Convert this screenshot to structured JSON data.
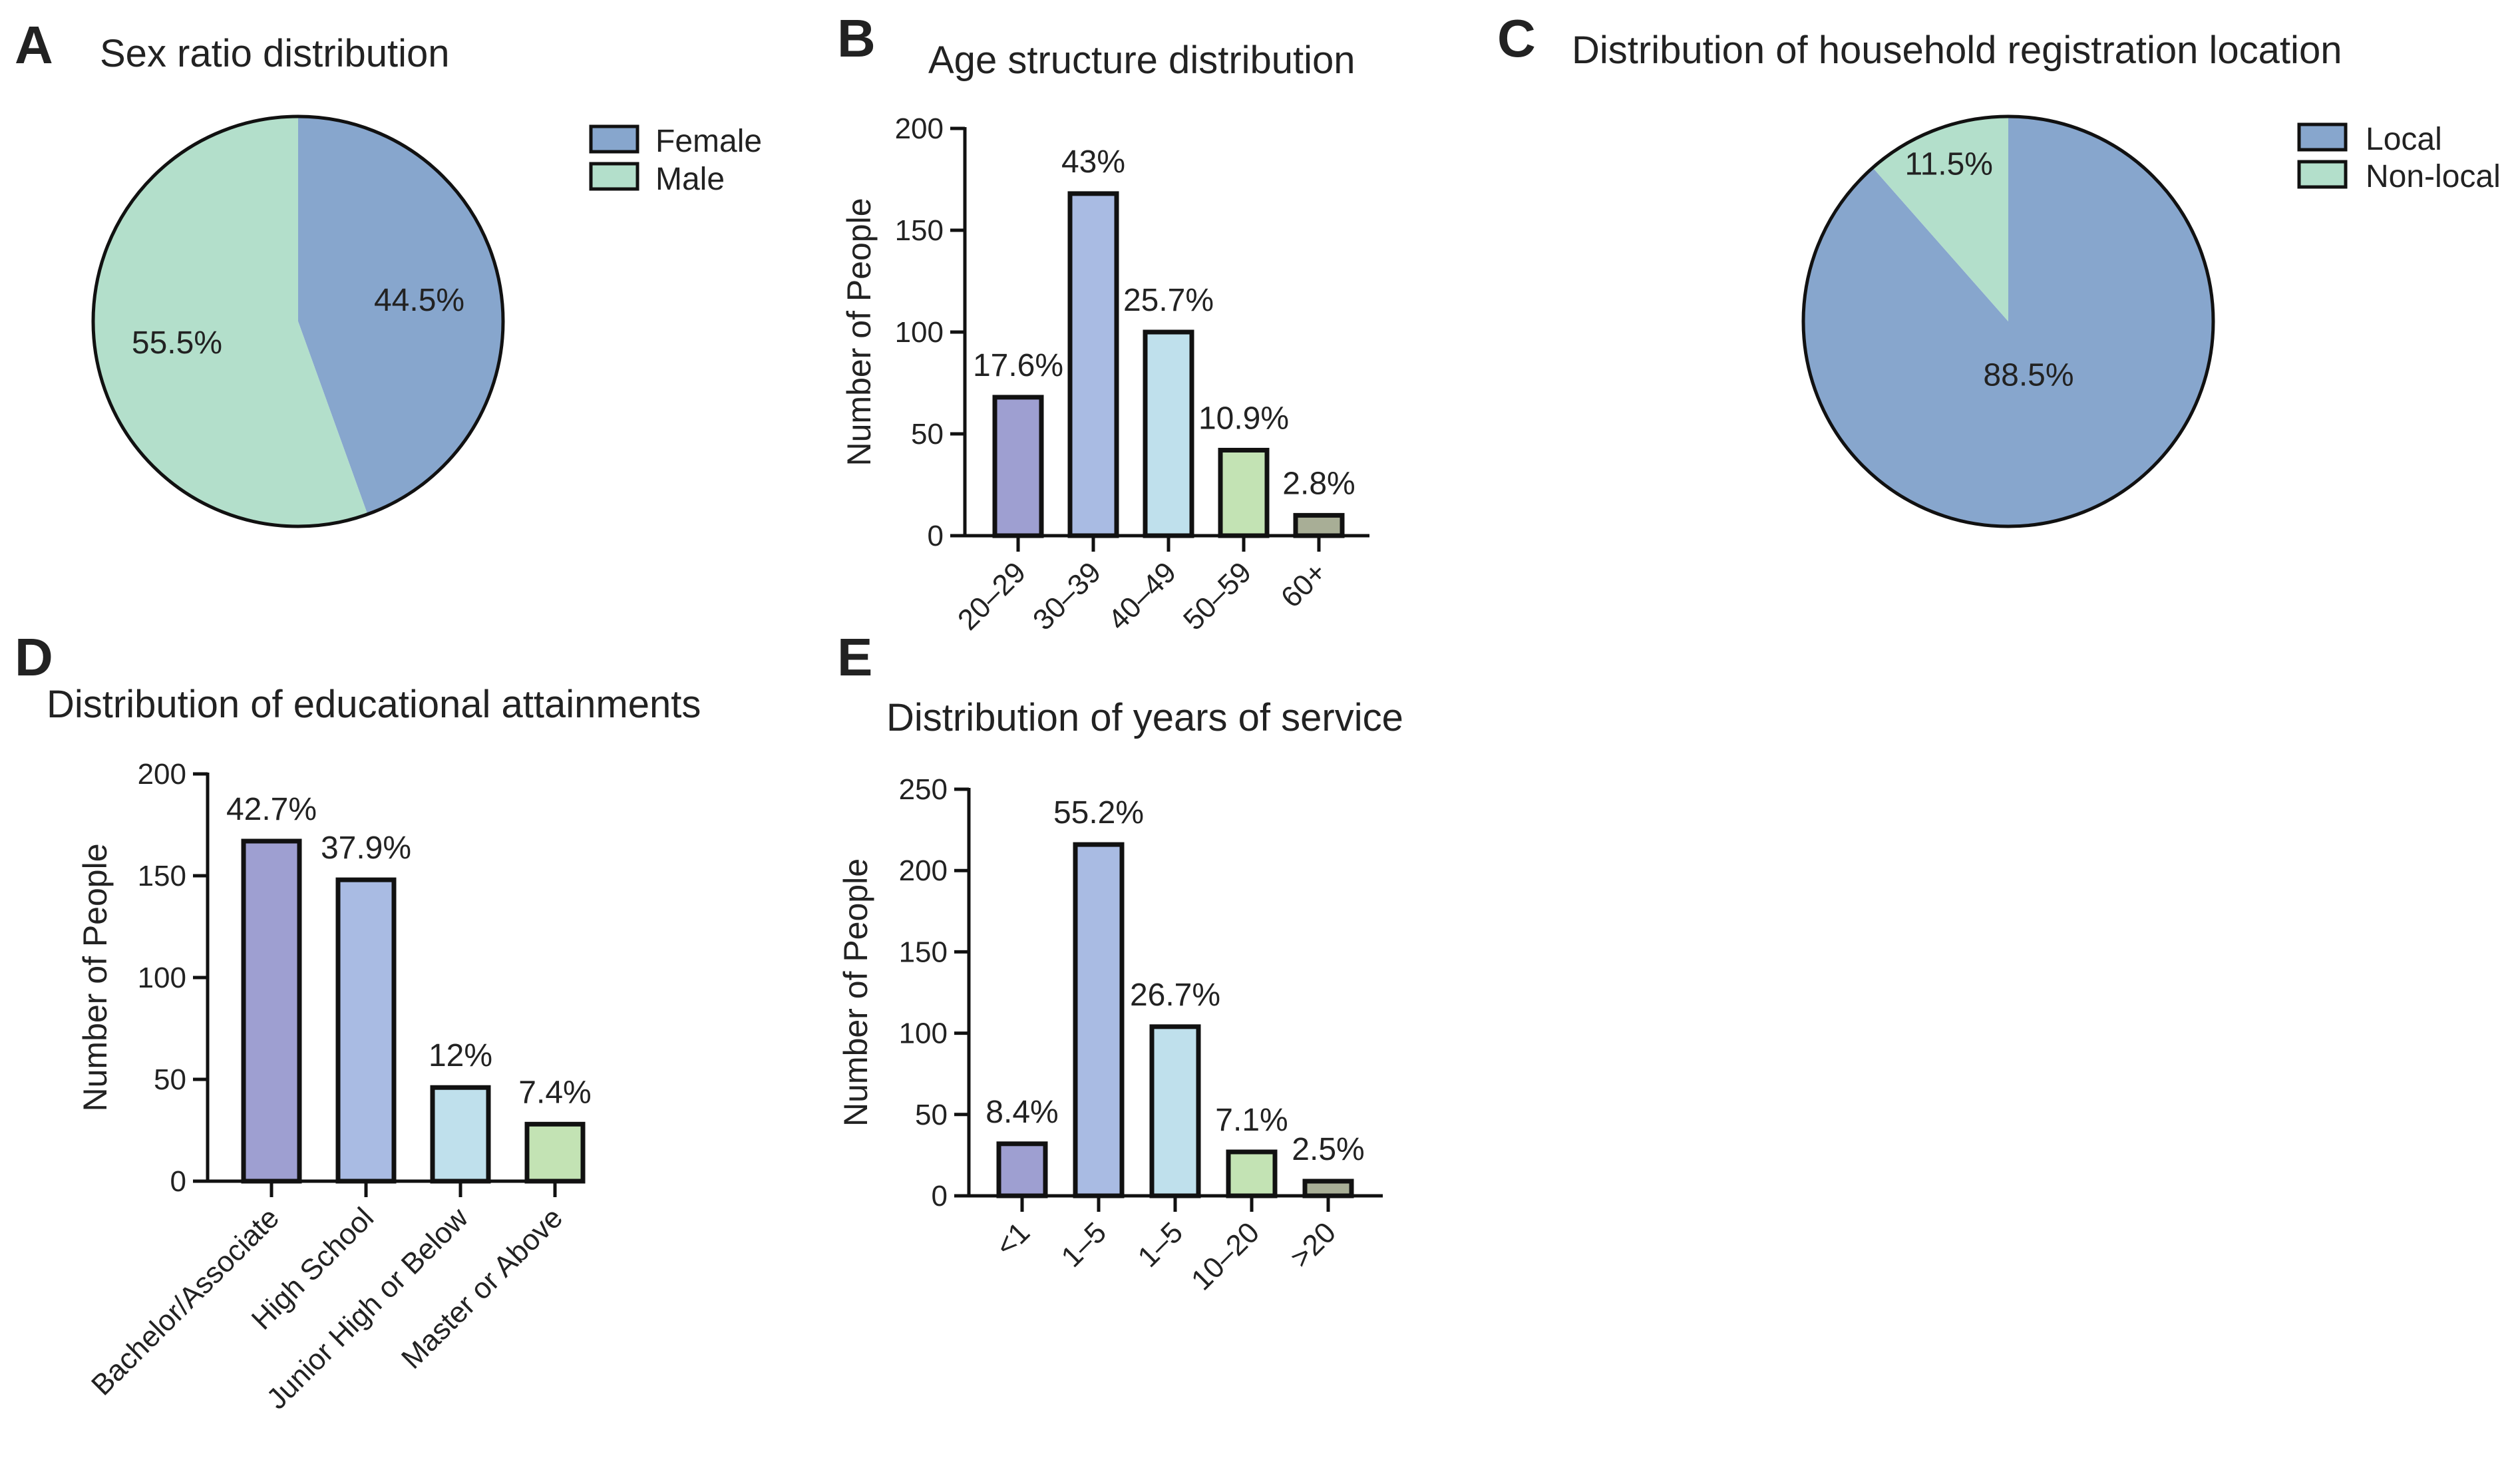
{
  "panel_letters": [
    "A",
    "B",
    "C",
    "D",
    "E"
  ],
  "colors": {
    "purple": "#9e9fd1",
    "periwinkle": "#a9bbe3",
    "lightblue": "#bfe0ec",
    "lightgreen": "#c3e3b4",
    "olive": "#a8ae96",
    "pieBlue": "#87a6cd",
    "pieGreen": "#b3dfcb",
    "stroke": "#111111"
  },
  "chart_data": [
    {
      "id": "A",
      "type": "pie",
      "title": "Sex ratio distribution",
      "labels": [
        "Female",
        "Male"
      ],
      "values": [
        44.5,
        55.5
      ],
      "value_labels": [
        "44.5%",
        "55.5%"
      ],
      "legend_position": "right"
    },
    {
      "id": "B",
      "type": "bar",
      "title": "Age structure distribution",
      "ylabel": "Number of People",
      "xlabel": "",
      "categories": [
        "20–29",
        "30–39",
        "40–49",
        "50–59",
        "60+"
      ],
      "values": [
        68,
        168,
        100,
        42,
        10
      ],
      "value_labels": [
        "17.6%",
        "43%",
        "25.7%",
        "10.9%",
        "2.8%"
      ],
      "ylim": [
        0,
        200
      ],
      "yticks": [
        "0",
        "50",
        "100",
        "150",
        "200"
      ]
    },
    {
      "id": "C",
      "type": "pie",
      "title": "Distribution of household registration location",
      "labels": [
        "Local",
        "Non-local"
      ],
      "values": [
        88.5,
        11.5
      ],
      "value_labels": [
        "88.5%",
        "11.5%"
      ],
      "legend_position": "right"
    },
    {
      "id": "D",
      "type": "bar",
      "title": "Distribution of educational attainments",
      "ylabel": "Number of People",
      "xlabel": "",
      "categories": [
        "Bachelor/Associate",
        "High School",
        "Junior High or Below",
        "Master or Above"
      ],
      "values": [
        167,
        148,
        46,
        28
      ],
      "value_labels": [
        "42.7%",
        "37.9%",
        "12%",
        "7.4%"
      ],
      "ylim": [
        0,
        200
      ],
      "yticks": [
        "0",
        "50",
        "100",
        "150",
        "200"
      ]
    },
    {
      "id": "E",
      "type": "bar",
      "title": "Distribution of years of service",
      "ylabel": "Number of People",
      "xlabel": "",
      "categories": [
        "<1",
        "1–5",
        "1–5",
        "10–20",
        ">20"
      ],
      "values": [
        32,
        216,
        104,
        27,
        9
      ],
      "value_labels": [
        "8.4%",
        "55.2%",
        "26.7%",
        "7.1%",
        "2.5%"
      ],
      "ylim": [
        0,
        250
      ],
      "yticks": [
        "0",
        "50",
        "100",
        "150",
        "200",
        "250"
      ]
    }
  ]
}
